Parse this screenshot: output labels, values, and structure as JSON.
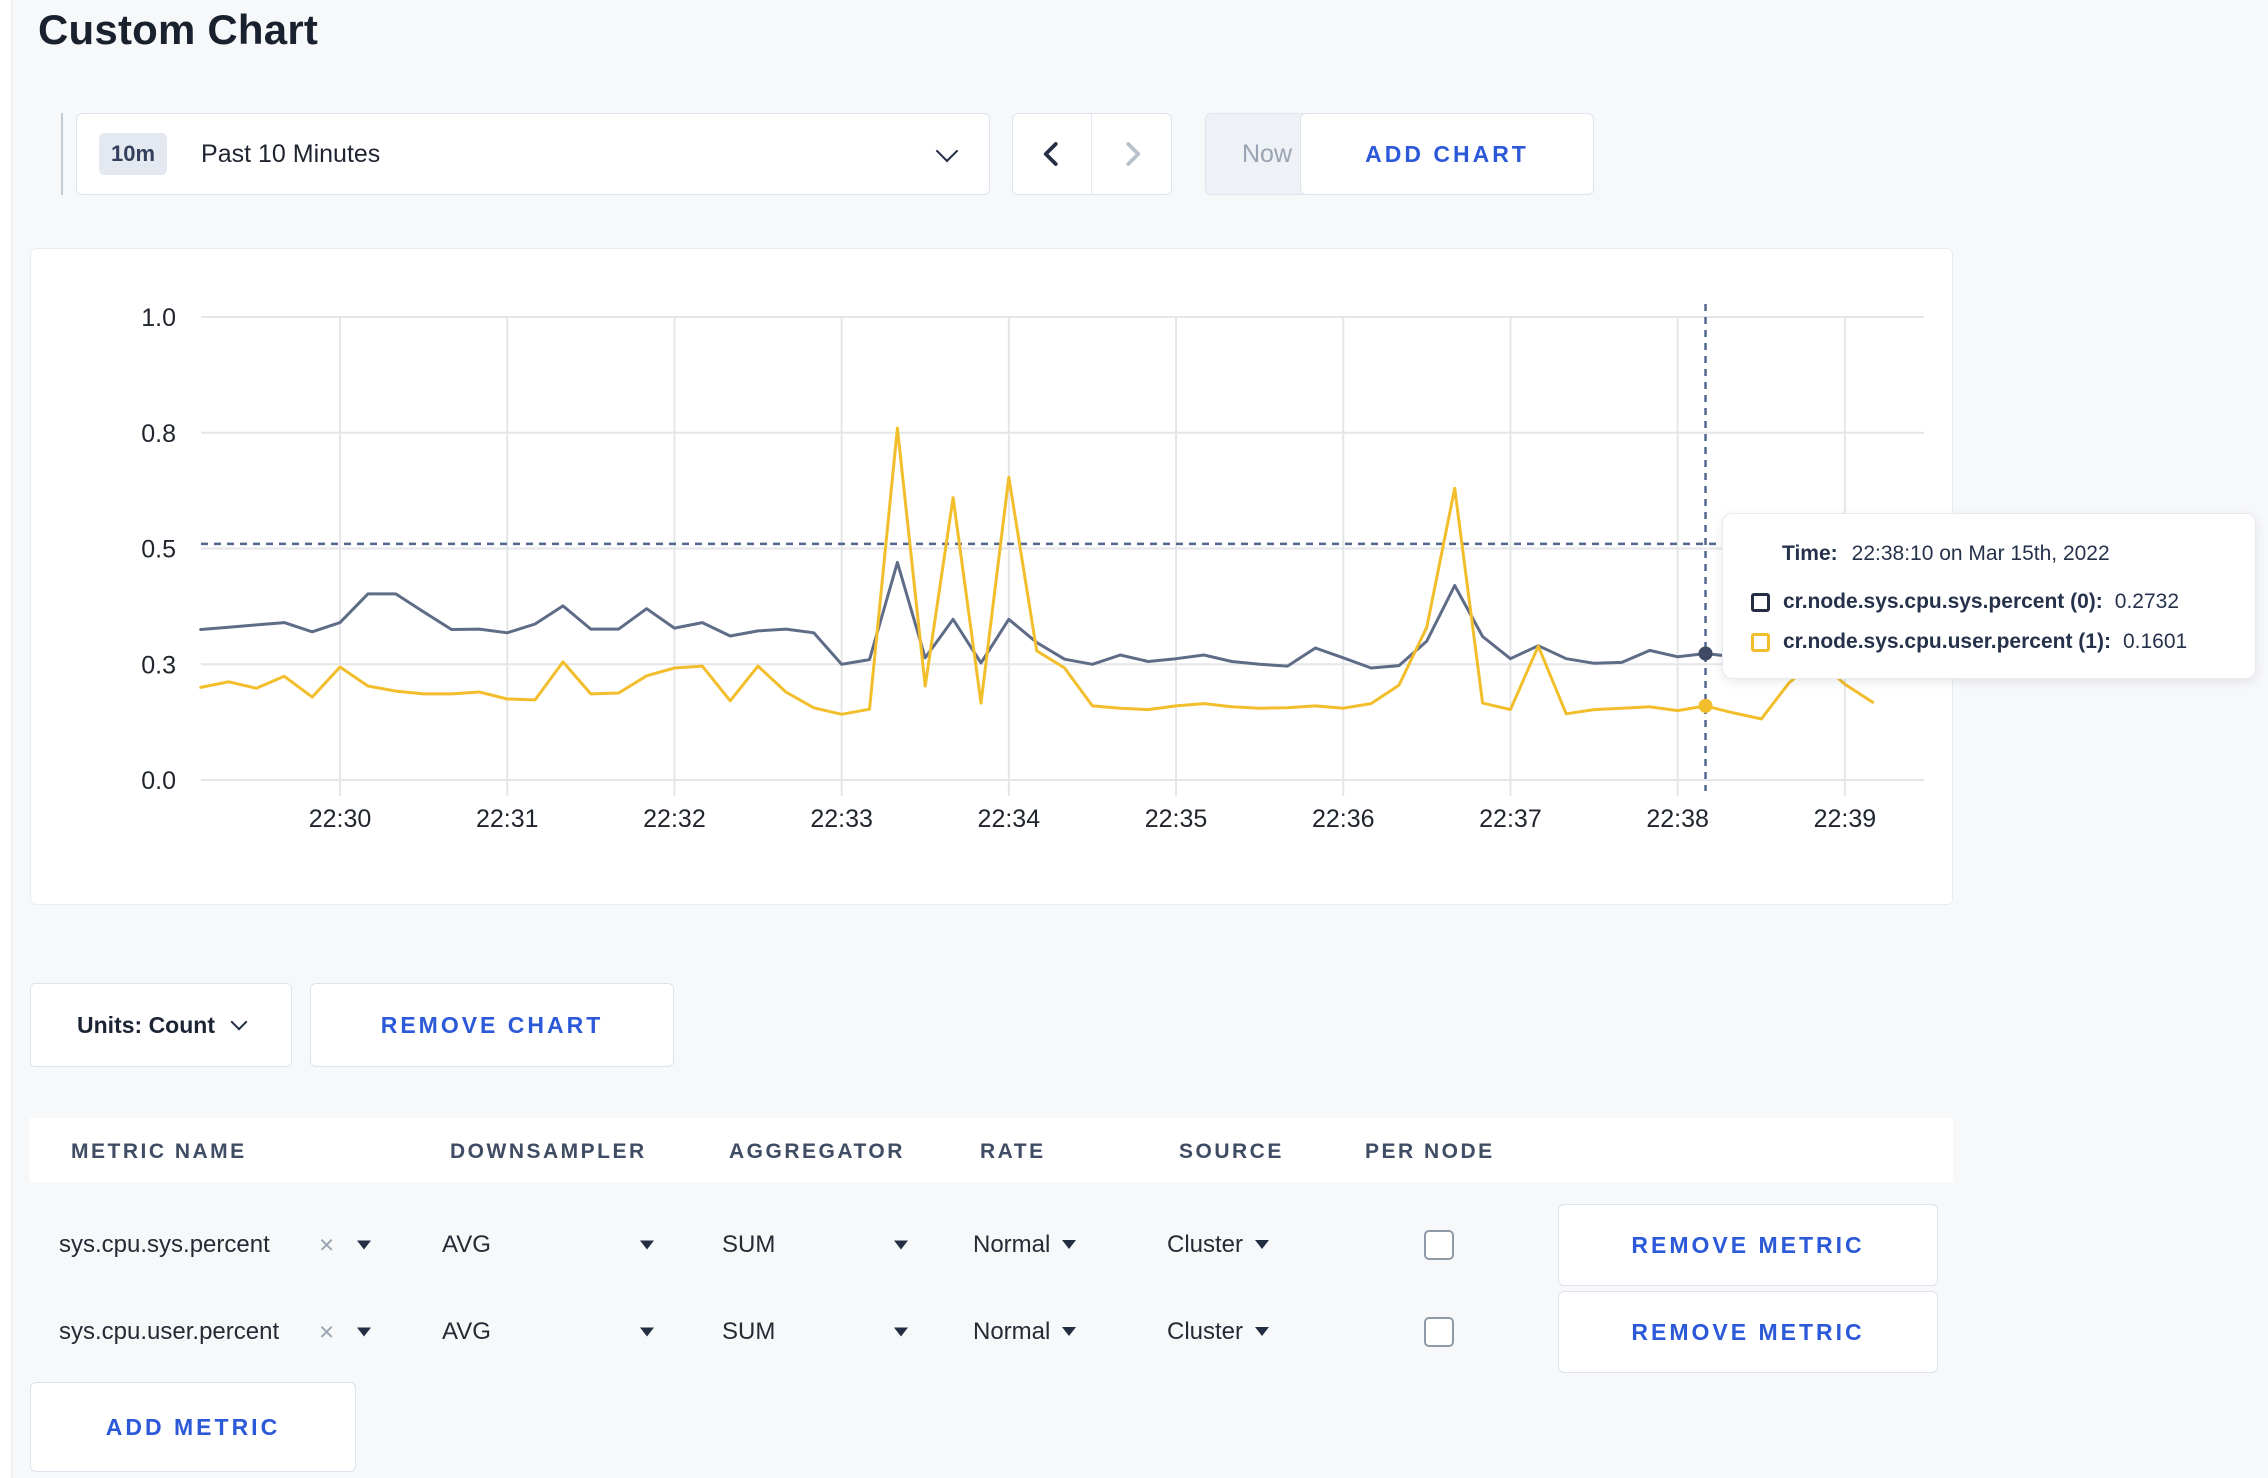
{
  "page": {
    "title": "Custom Chart"
  },
  "controls": {
    "range_badge": "10m",
    "range_label": "Past 10 Minutes",
    "now_label": "Now",
    "add_chart_label": "ADD CHART"
  },
  "chart_data": {
    "type": "line",
    "title": "",
    "xlabel": "",
    "ylabel": "",
    "ylim": [
      0,
      1
    ],
    "y_ticks": [
      {
        "value": 0.0,
        "label": "0.0"
      },
      {
        "value": 0.25,
        "label": "0.3"
      },
      {
        "value": 0.5,
        "label": "0.5"
      },
      {
        "value": 0.75,
        "label": "0.8"
      },
      {
        "value": 1.0,
        "label": "1.0"
      }
    ],
    "x_start_time": "22:29:10",
    "x_interval_seconds": 10,
    "x_tick_labels": [
      "22:30",
      "22:31",
      "22:32",
      "22:33",
      "22:34",
      "22:35",
      "22:36",
      "22:37",
      "22:38",
      "22:39"
    ],
    "x_first_tick_index": 5,
    "x_tick_every_n_points": 6,
    "grid": true,
    "legend_position": "tooltip",
    "crosshair": {
      "time": "22:38:10",
      "point_index": 54,
      "hover_y_value": 0.51
    },
    "series": [
      {
        "name": "cr.node.sys.cpu.sys.percent",
        "color": "#5F6C87",
        "dot_color": "#3e4a63",
        "values": [
          0.325,
          0.33,
          0.335,
          0.34,
          0.32,
          0.34,
          0.402,
          0.402,
          0.363,
          0.325,
          0.326,
          0.318,
          0.337,
          0.376,
          0.326,
          0.326,
          0.37,
          0.328,
          0.34,
          0.311,
          0.322,
          0.326,
          0.318,
          0.25,
          0.26,
          0.47,
          0.264,
          0.347,
          0.253,
          0.347,
          0.297,
          0.261,
          0.25,
          0.27,
          0.256,
          0.262,
          0.27,
          0.256,
          0.25,
          0.246,
          0.285,
          0.264,
          0.242,
          0.247,
          0.3,
          0.42,
          0.31,
          0.262,
          0.29,
          0.262,
          0.252,
          0.254,
          0.28,
          0.266,
          0.2732,
          0.266,
          0.26,
          0.264,
          0.26,
          0.262,
          0.265
        ]
      },
      {
        "name": "cr.node.sys.cpu.user.percent",
        "color": "#F2BE2C",
        "dot_color": "#F2BE2C",
        "values": [
          0.2,
          0.212,
          0.198,
          0.224,
          0.179,
          0.244,
          0.203,
          0.192,
          0.186,
          0.186,
          0.19,
          0.175,
          0.173,
          0.255,
          0.186,
          0.188,
          0.225,
          0.242,
          0.246,
          0.171,
          0.246,
          0.19,
          0.156,
          0.142,
          0.153,
          0.76,
          0.203,
          0.61,
          0.166,
          0.654,
          0.279,
          0.242,
          0.16,
          0.155,
          0.152,
          0.16,
          0.165,
          0.158,
          0.155,
          0.156,
          0.16,
          0.155,
          0.165,
          0.205,
          0.33,
          0.63,
          0.166,
          0.152,
          0.289,
          0.143,
          0.152,
          0.155,
          0.158,
          0.15,
          0.1601,
          0.145,
          0.132,
          0.21,
          0.26,
          0.207,
          0.168
        ]
      }
    ]
  },
  "tooltip": {
    "time_label": "Time:",
    "time_value": "22:38:10 on Mar 15th, 2022",
    "rows": [
      {
        "name": "cr.node.sys.cpu.sys.percent (0):",
        "value": "0.2732",
        "color": "#242e42"
      },
      {
        "name": "cr.node.sys.cpu.user.percent (1):",
        "value": "0.1601",
        "color": "#F2BE2C"
      }
    ]
  },
  "chart_footer": {
    "units_label": "Units: Count",
    "remove_chart_label": "REMOVE CHART"
  },
  "metrics_table": {
    "headers": [
      "METRIC NAME",
      "DOWNSAMPLER",
      "AGGREGATOR",
      "RATE",
      "SOURCE",
      "PER NODE"
    ],
    "rows": [
      {
        "metric": "sys.cpu.sys.percent",
        "close": "×",
        "downsampler": "AVG",
        "aggregator": "SUM",
        "rate": "Normal",
        "source": "Cluster",
        "per_node_checked": false,
        "remove_label": "REMOVE METRIC"
      },
      {
        "metric": "sys.cpu.user.percent",
        "close": "×",
        "downsampler": "AVG",
        "aggregator": "SUM",
        "rate": "Normal",
        "source": "Cluster",
        "per_node_checked": false,
        "remove_label": "REMOVE METRIC"
      }
    ],
    "add_metric_label": "ADD METRIC"
  }
}
